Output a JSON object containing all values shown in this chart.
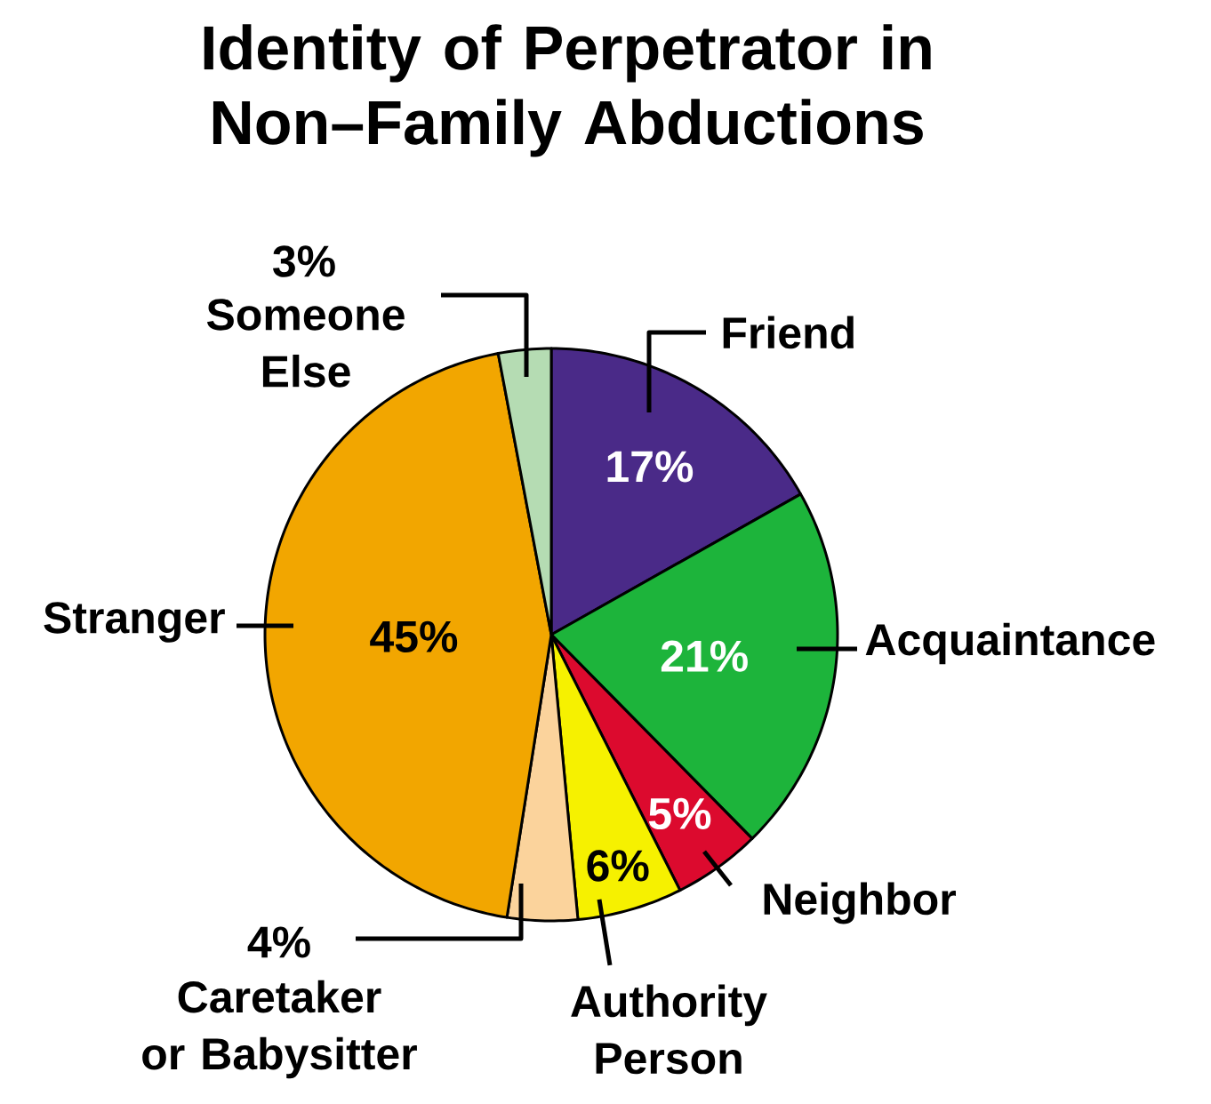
{
  "chart_data": {
    "type": "pie",
    "title": "Identity of Perpetrator in Non–Family Abductions",
    "categories": [
      "Friend",
      "Acquaintance",
      "Neighbor",
      "Authority Person",
      "Caretaker or Babysitter",
      "Stranger",
      "Someone Else"
    ],
    "values": [
      17,
      21,
      5,
      6,
      4,
      45,
      3
    ],
    "colors": [
      "#4a2a88",
      "#1db43b",
      "#dc0a2e",
      "#f6f100",
      "#fbd39c",
      "#f2a600",
      "#b5dcb3"
    ],
    "value_labels": [
      "17%",
      "21%",
      "5%",
      "6%",
      "4%",
      "45%",
      "3%"
    ]
  }
}
